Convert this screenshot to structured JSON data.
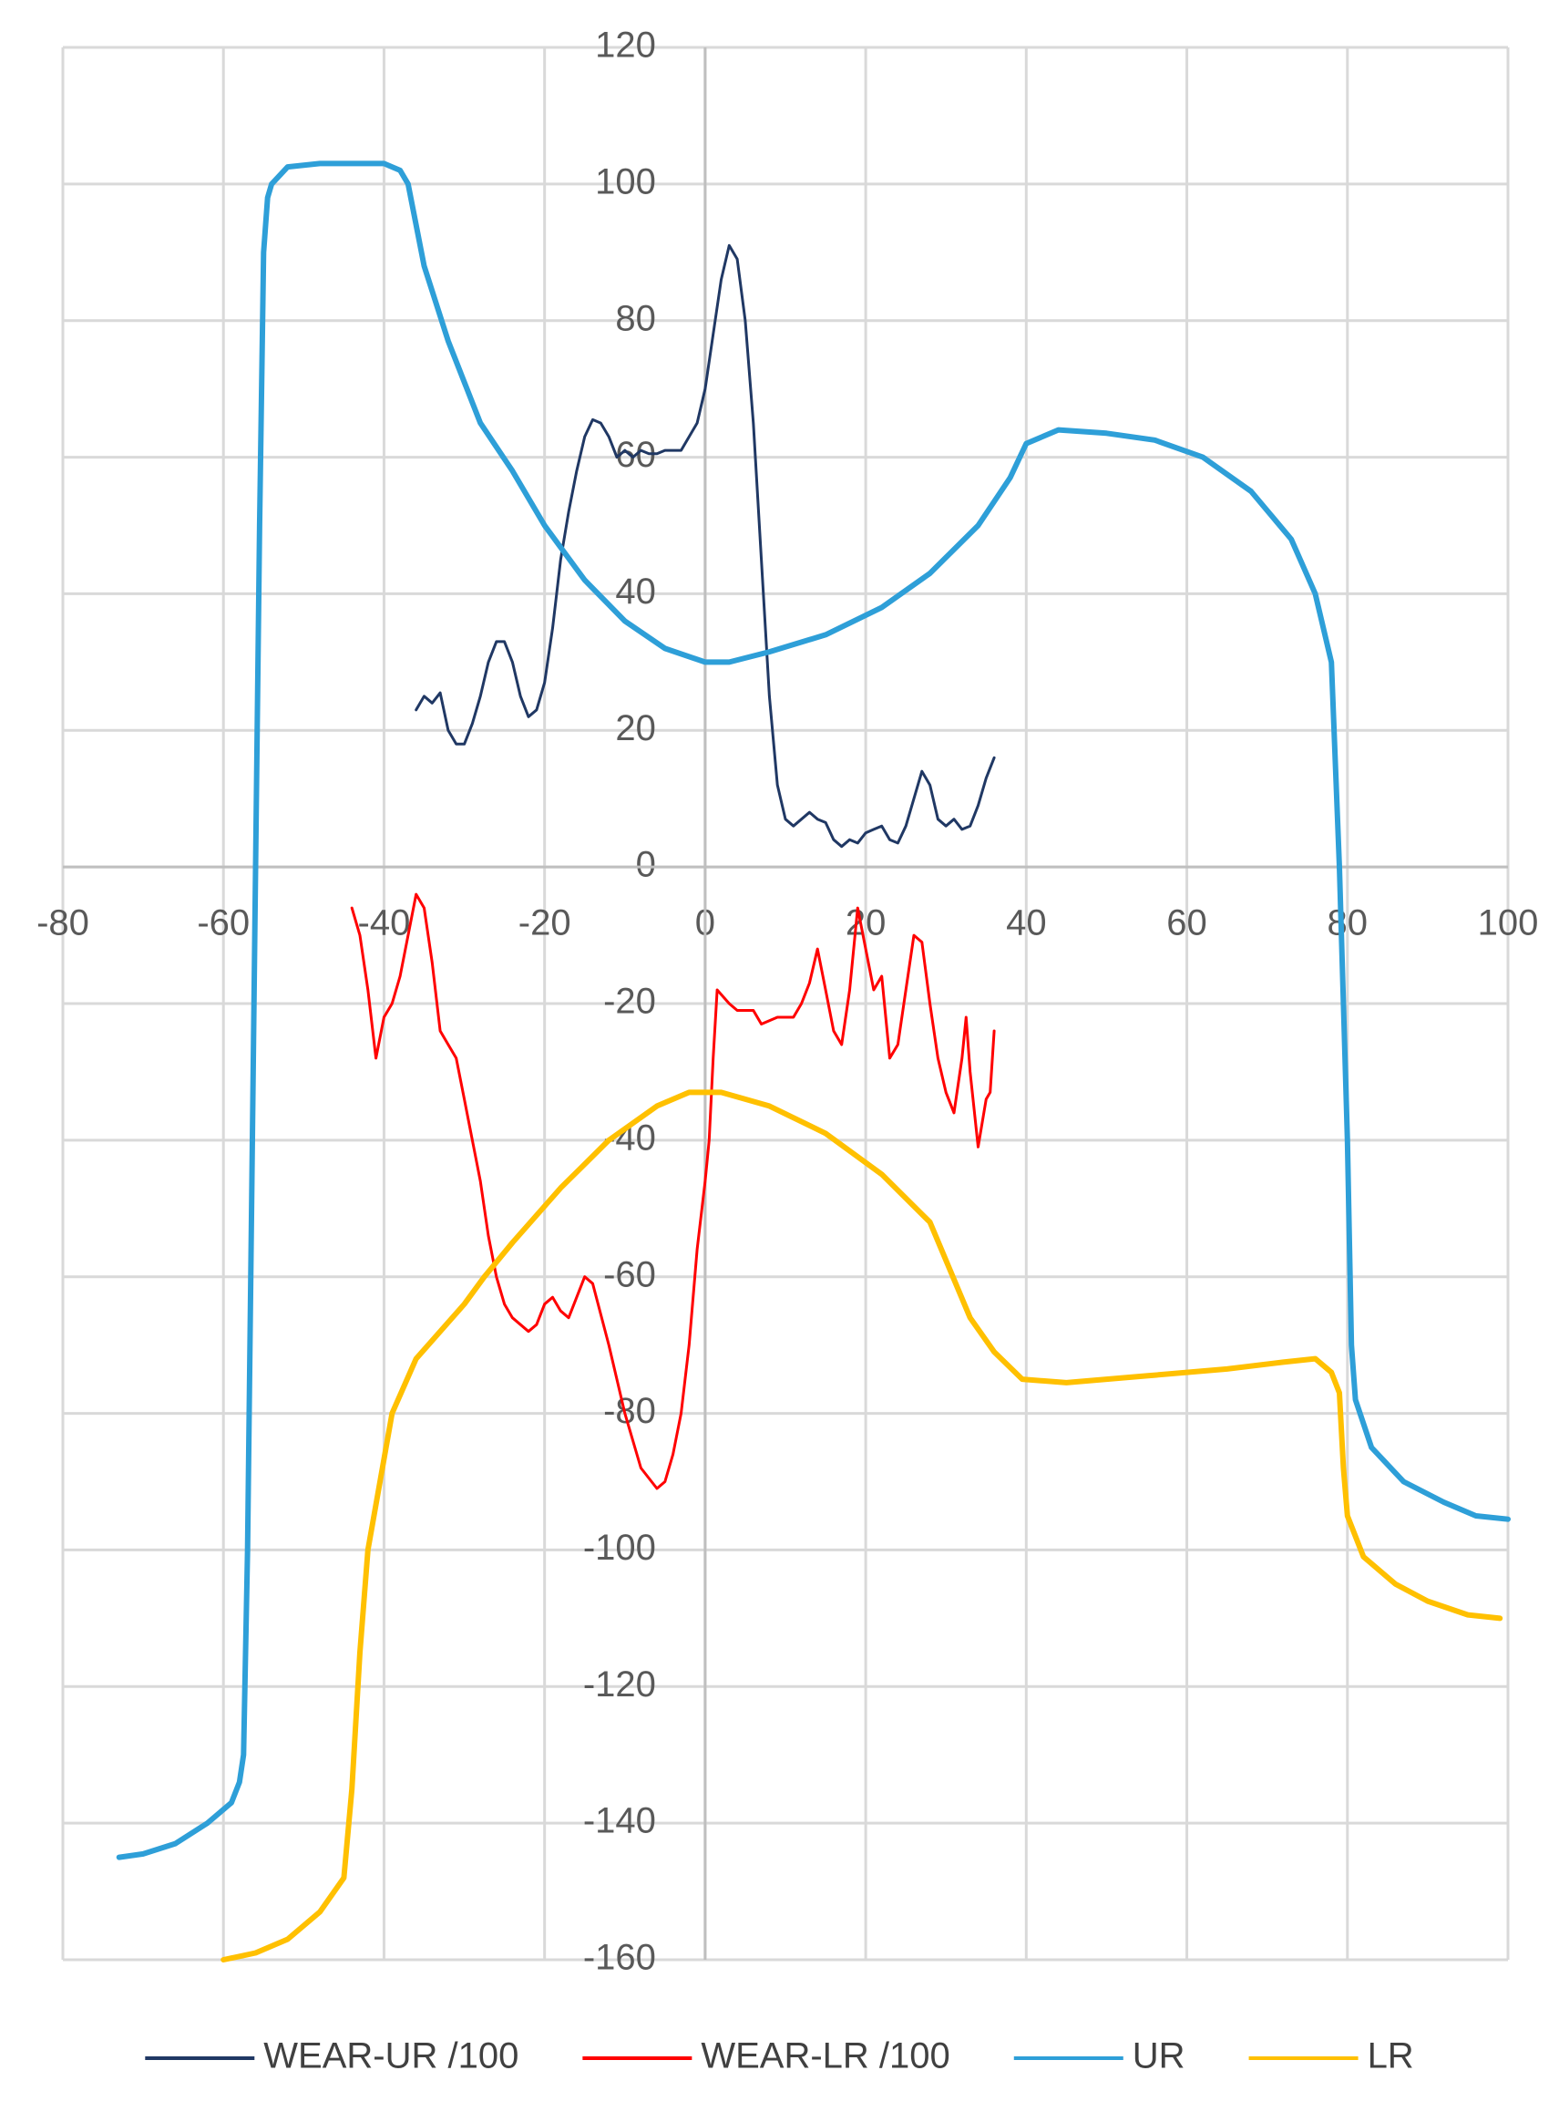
{
  "chart_data": {
    "type": "line",
    "xlim": [
      -80,
      100
    ],
    "xticks": [
      -80,
      -60,
      -40,
      -20,
      0,
      20,
      40,
      60,
      80,
      100
    ],
    "ylim": [
      -160,
      120
    ],
    "yticks": [
      -160,
      -140,
      -120,
      -100,
      -80,
      -60,
      -40,
      -20,
      0,
      20,
      40,
      60,
      80,
      100,
      120
    ],
    "grid": true,
    "legend": "bottom",
    "series": [
      {
        "name": "WEAR-UR /100",
        "color": "#203864",
        "x": [
          -36,
          -35,
          -34,
          -33,
          -32,
          -31,
          -30,
          -29,
          -28,
          -27,
          -26,
          -25,
          -24,
          -23,
          -22,
          -21,
          -20,
          -19,
          -18,
          -17,
          -16,
          -15,
          -14,
          -13,
          -12,
          -11,
          -10,
          -9,
          -8,
          -7,
          -6,
          -5,
          -3,
          -1,
          0,
          1,
          2,
          3,
          4,
          5,
          6,
          7,
          8,
          9,
          10,
          11,
          12,
          13,
          14,
          15,
          16,
          17,
          18,
          19,
          20,
          21,
          22,
          23,
          24,
          25,
          26,
          27,
          28,
          29,
          30,
          31,
          32,
          33,
          34,
          35,
          36
        ],
        "values": [
          23,
          25,
          24,
          25.5,
          20,
          18,
          18,
          21,
          25,
          30,
          33,
          33,
          30,
          25,
          22,
          23,
          27,
          35,
          45,
          52,
          58,
          63,
          65.5,
          65,
          63,
          60,
          61,
          60,
          61,
          60.5,
          60.5,
          61,
          61,
          65,
          70,
          78,
          86,
          91,
          89,
          80,
          65,
          45,
          25,
          12,
          7,
          6,
          7,
          8,
          7,
          6.5,
          4,
          3,
          4,
          3.5,
          5,
          5.5,
          6,
          4,
          3.5,
          6,
          10,
          14,
          12,
          7,
          6,
          7,
          5.5,
          6,
          9,
          13,
          16
        ]
      },
      {
        "name": "WEAR-LR /100",
        "color": "#ff0000",
        "x": [
          -44,
          -43,
          -42,
          -41,
          -40,
          -39,
          -38,
          -37,
          -36,
          -35,
          -34,
          -33,
          -32,
          -31,
          -30,
          -29,
          -28,
          -27,
          -26,
          -25,
          -24,
          -23,
          -22,
          -21,
          -20,
          -19,
          -18,
          -17,
          -16,
          -15,
          -14,
          -12,
          -10,
          -8,
          -6,
          -5,
          -4,
          -3,
          -2,
          -1,
          0,
          0.5,
          1,
          1.5,
          3,
          4,
          6,
          7,
          9,
          11,
          12,
          13,
          14,
          15,
          16,
          17,
          18,
          19,
          20,
          21,
          22,
          23,
          24,
          25,
          26,
          27,
          28,
          29,
          30,
          31,
          32,
          32.5,
          33,
          34,
          35,
          35.5,
          36
        ],
        "values": [
          -6,
          -10,
          -18,
          -28,
          -22,
          -20,
          -16,
          -10,
          -4,
          -6,
          -14,
          -24,
          -26,
          -28,
          -34,
          -40,
          -46,
          -54,
          -60,
          -64,
          -66,
          -67,
          -68,
          -67,
          -64,
          -63,
          -65,
          -66,
          -63,
          -60,
          -61,
          -70,
          -80,
          -88,
          -91,
          -90,
          -86,
          -80,
          -70,
          -56,
          -46,
          -40,
          -28,
          -18,
          -20,
          -21,
          -21,
          -23,
          -22,
          -22,
          -20,
          -17,
          -12,
          -18,
          -24,
          -26,
          -18,
          -6,
          -12,
          -18,
          -16,
          -28,
          -26,
          -18,
          -10,
          -11,
          -20,
          -28,
          -33,
          -36,
          -28,
          -22,
          -30,
          -41,
          -34,
          -33,
          -24
        ]
      },
      {
        "name": "UR",
        "color": "#2e9fd8",
        "x": [
          -73,
          -70,
          -66,
          -62,
          -59,
          -58,
          -57.5,
          -57,
          -56.5,
          -56,
          -55.5,
          -55,
          -54.5,
          -54,
          -52,
          -48,
          -40,
          -38,
          -37,
          -35,
          -32,
          -28,
          -24,
          -20,
          -15,
          -10,
          -5,
          0,
          3,
          8,
          15,
          22,
          28,
          34,
          38,
          40,
          44,
          50,
          56,
          62,
          68,
          73,
          76,
          78,
          79,
          80,
          80.5,
          81,
          83,
          87,
          92,
          96,
          100
        ],
        "values": [
          -145,
          -144.5,
          -143,
          -140,
          -137,
          -134,
          -130,
          -100,
          -50,
          0,
          50,
          90,
          98,
          100,
          102.5,
          103,
          103,
          102,
          100,
          88,
          77,
          65,
          58,
          50,
          42,
          36,
          32,
          30,
          30,
          31.5,
          34,
          38,
          43,
          50,
          57,
          62,
          64,
          63.5,
          62.5,
          60,
          55,
          48,
          40,
          30,
          0,
          -40,
          -70,
          -78,
          -85,
          -90,
          -93,
          -95,
          -95.5
        ]
      },
      {
        "name": "LR",
        "color": "#ffc000",
        "x": [
          -60,
          -56,
          -52,
          -48,
          -45,
          -44,
          -43,
          -42,
          -39,
          -36,
          -30,
          -27.5,
          -24,
          -18,
          -12,
          -6,
          -2,
          2,
          8,
          15,
          22,
          28,
          33,
          36,
          39.5,
          45,
          55,
          65,
          72,
          76,
          78,
          79,
          79.5,
          80,
          82,
          86,
          90,
          95,
          99
        ],
        "values": [
          -160,
          -159,
          -157,
          -153,
          -148,
          -135,
          -115,
          -100,
          -80,
          -72,
          -64,
          -60,
          -55,
          -47,
          -40,
          -35,
          -33,
          -33,
          -35,
          -39,
          -45,
          -52,
          -66,
          -71,
          -75,
          -75.5,
          -74.5,
          -73.5,
          -72.5,
          -72,
          -74,
          -77,
          -88,
          -95,
          -101,
          -105,
          -107.5,
          -109.5,
          -110
        ]
      }
    ]
  }
}
